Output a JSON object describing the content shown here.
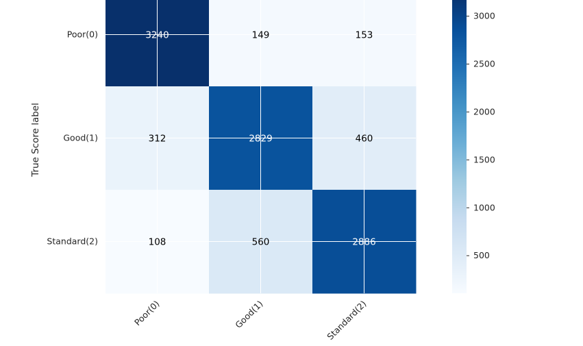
{
  "chart_data": {
    "type": "heatmap",
    "title": "",
    "xlabel": "",
    "ylabel": "True Score label",
    "rows": [
      "Poor(0)",
      "Good(1)",
      "Standard(2)"
    ],
    "columns": [
      "Poor(0)",
      "Good(1)",
      "Standard(2)"
    ],
    "values": [
      [
        3240,
        149,
        153
      ],
      [
        312,
        2829,
        460
      ],
      [
        108,
        560,
        2886
      ]
    ],
    "colormap": "Blues",
    "colorbar": {
      "min": 108,
      "max": 3240,
      "ticks": [
        500,
        1000,
        1500,
        2000,
        2500,
        3000
      ]
    },
    "grid": true
  }
}
